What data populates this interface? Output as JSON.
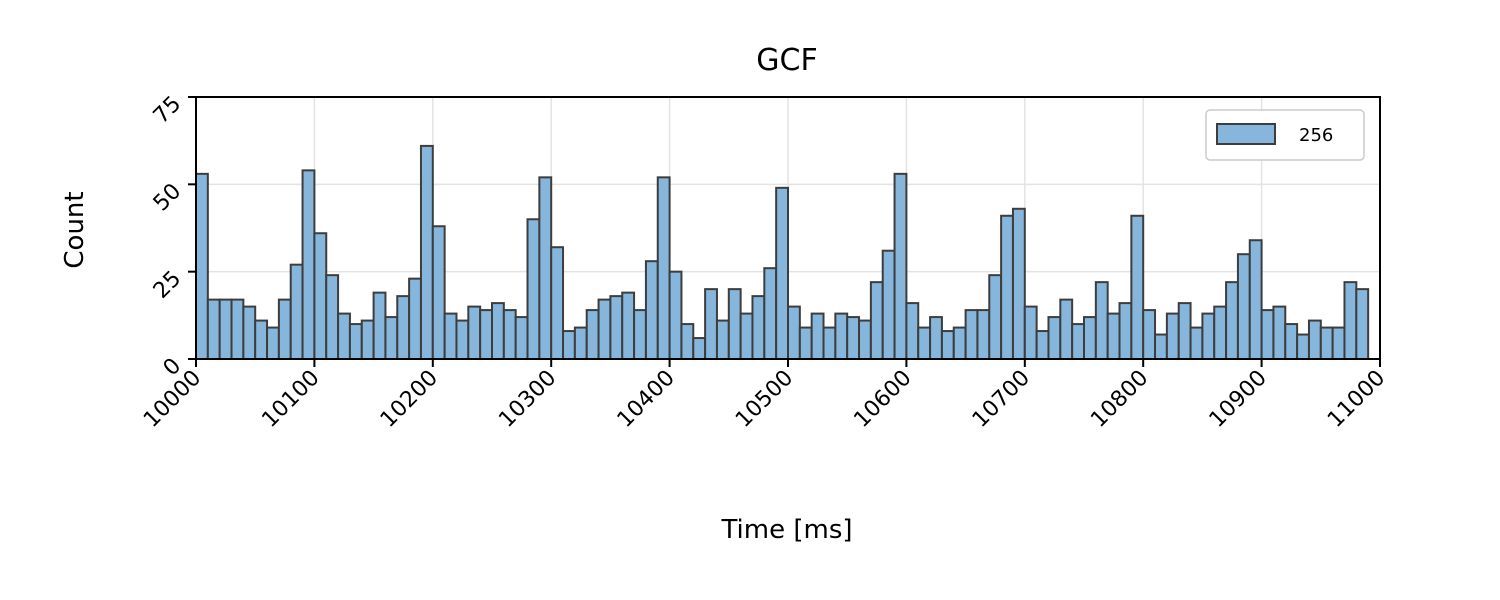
{
  "chart_data": {
    "type": "bar",
    "title": "GCF",
    "xlabel": "Time [ms]",
    "ylabel": "Count",
    "xlim": [
      10000,
      11000
    ],
    "ylim": [
      0,
      75
    ],
    "xticks": [
      "10000",
      "10100",
      "10200",
      "10300",
      "10400",
      "10500",
      "10600",
      "10700",
      "10800",
      "10900",
      "11000"
    ],
    "yticks": [
      "0",
      "25",
      "50",
      "75"
    ],
    "bin_width": 10,
    "grid": true,
    "legend_position": "top-right",
    "colors": {
      "bar_fill": "#86b6dc",
      "bar_edge": "#3d3d3d",
      "grid": "#e3e3e3"
    },
    "series": [
      {
        "name": "256",
        "bin_start": 10000,
        "values": [
          53,
          17,
          17,
          17,
          15,
          11,
          9,
          17,
          27,
          54,
          36,
          24,
          13,
          10,
          11,
          19,
          12,
          18,
          23,
          61,
          38,
          13,
          11,
          15,
          14,
          16,
          14,
          12,
          40,
          52,
          32,
          8,
          9,
          14,
          17,
          18,
          19,
          14,
          28,
          52,
          25,
          10,
          6,
          20,
          11,
          20,
          13,
          18,
          26,
          49,
          15,
          9,
          13,
          9,
          13,
          12,
          11,
          22,
          31,
          53,
          16,
          9,
          12,
          8,
          9,
          14,
          14,
          24,
          41,
          43,
          15,
          8,
          12,
          17,
          10,
          12,
          22,
          13,
          16,
          41,
          14,
          7,
          13,
          16,
          9,
          13,
          15,
          22,
          30,
          34,
          14,
          15,
          10,
          7,
          11,
          9,
          9,
          22,
          20
        ]
      }
    ]
  }
}
